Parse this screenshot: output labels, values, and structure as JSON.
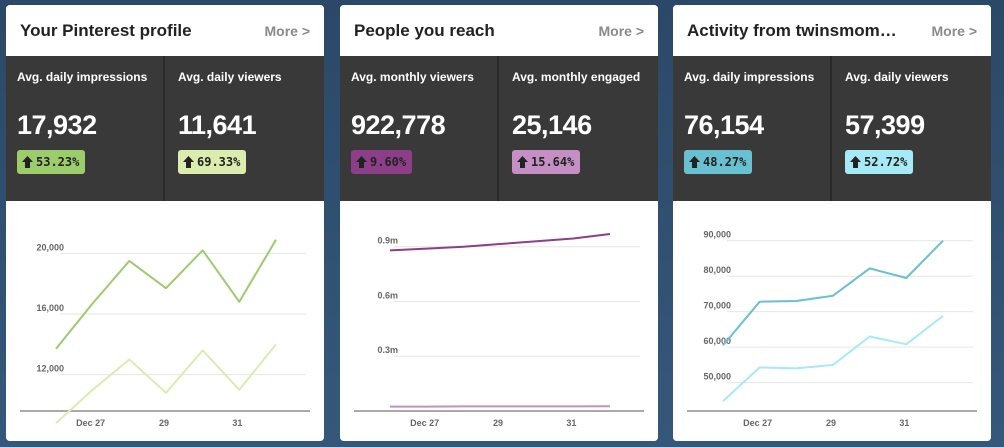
{
  "cards": [
    {
      "title": "Your Pinterest profile",
      "more_label": "More >",
      "stats": [
        {
          "label": "Avg. daily impressions",
          "value": "17,932",
          "change": "53.23%",
          "badge_color": "#9ccc6c"
        },
        {
          "label": "Avg. daily viewers",
          "value": "11,641",
          "change": "69.33%",
          "badge_color": "#dcecae"
        }
      ]
    },
    {
      "title": "People you reach",
      "more_label": "More >",
      "stats": [
        {
          "label": "Avg. monthly viewers",
          "value": "922,778",
          "change": "9.60%",
          "badge_color": "#8c3f86"
        },
        {
          "label": "Avg. monthly engaged",
          "value": "25,146",
          "change": "15.64%",
          "badge_color": "#c490c4"
        }
      ]
    },
    {
      "title": "Activity from twinsmom…",
      "more_label": "More >",
      "stats": [
        {
          "label": "Avg. daily impressions",
          "value": "76,154",
          "change": "48.27%",
          "badge_color": "#68c0d0"
        },
        {
          "label": "Avg. daily viewers",
          "value": "57,399",
          "change": "52.72%",
          "badge_color": "#a6eaf6"
        }
      ]
    }
  ],
  "chart_data": [
    {
      "type": "line",
      "x_tick_labels": [
        "Dec 27",
        "29",
        "31"
      ],
      "y_ticks": [
        12000,
        16000,
        20000
      ],
      "y_tick_labels": [
        "12,000",
        "16,000",
        "20,000"
      ],
      "ylim": [
        9600,
        22000
      ],
      "grid": true,
      "series": [
        {
          "color": "#9ccc6c",
          "values": [
            13700,
            16700,
            19500,
            17700,
            20200,
            16800,
            20900
          ]
        },
        {
          "color": "#dcecae",
          "values": [
            8800,
            11000,
            13000,
            10800,
            13600,
            11000,
            14000
          ]
        }
      ]
    },
    {
      "type": "line",
      "x_tick_labels": [
        "Dec 27",
        "29",
        "31"
      ],
      "y_ticks": [
        0.3,
        0.6,
        0.9
      ],
      "y_tick_labels": [
        "0.3m",
        "0.6m",
        "0.9m"
      ],
      "ylim": [
        0,
        1.03
      ],
      "grid": true,
      "series": [
        {
          "color": "#8c3f86",
          "values": [
            0.88,
            0.89,
            0.9,
            0.915,
            0.93,
            0.945,
            0.97
          ]
        },
        {
          "color": "#c490c4",
          "values": [
            0.024,
            0.024,
            0.025,
            0.025,
            0.025,
            0.025,
            0.026
          ]
        }
      ]
    },
    {
      "type": "line",
      "x_tick_labels": [
        "Dec 27",
        "29",
        "31"
      ],
      "y_ticks": [
        50000,
        60000,
        70000,
        80000,
        90000
      ],
      "y_tick_labels": [
        "50,000",
        "60,000",
        "70,000",
        "80,000",
        "90,000"
      ],
      "ylim": [
        42000,
        95000
      ],
      "grid": true,
      "series": [
        {
          "color": "#68c0d0",
          "values": [
            60500,
            72800,
            73000,
            74500,
            82200,
            79500,
            90000
          ]
        },
        {
          "color": "#a6eaf6",
          "values": [
            44800,
            54300,
            54000,
            55000,
            63000,
            60800,
            68800
          ]
        }
      ]
    }
  ]
}
